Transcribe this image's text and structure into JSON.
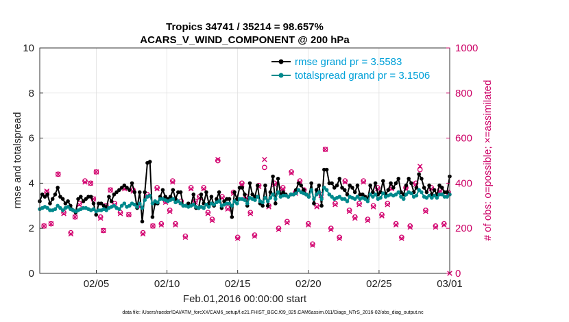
{
  "chart_data": {
    "type": "line",
    "title_line1": "Tropics 34741 / 35214 = 98.657%",
    "title_line2": "ACARS_V_WIND_COMPONENT @ 200 hPa",
    "xlabel": "Feb.01,2016 00:00:00 start",
    "ylabel_left": "rmse and totalspread",
    "ylabel_right": "# of obs: o=possible; ×=assimilated",
    "x_range_days": [
      1,
      30
    ],
    "ylim_left": [
      0,
      10
    ],
    "ylim_right": [
      0,
      1000
    ],
    "x_ticks": [
      {
        "day": 5,
        "label": "02/05"
      },
      {
        "day": 10,
        "label": "02/10"
      },
      {
        "day": 15,
        "label": "02/15"
      },
      {
        "day": 20,
        "label": "02/20"
      },
      {
        "day": 25,
        "label": "02/25"
      },
      {
        "day": 30,
        "label": "03/01"
      }
    ],
    "y_ticks_left": [
      "0",
      "2",
      "4",
      "6",
      "8",
      "10"
    ],
    "y_ticks_right": [
      "0",
      "200",
      "400",
      "600",
      "800",
      "1000"
    ],
    "grid": true,
    "legend_position": "top-right",
    "series": [
      {
        "name": "rmse grand pr = 3.5583",
        "color": "#000000",
        "axis": "left",
        "values": [
          3.2,
          3.5,
          3.4,
          3.5,
          3.1,
          3.3,
          3.5,
          3.8,
          3.4,
          3.3,
          3.1,
          3.2,
          3.0,
          2.8,
          2.7,
          3.3,
          3.4,
          3.2,
          3.3,
          3.4,
          3.4,
          3.1,
          2.6,
          3.1,
          3.1,
          3.0,
          2.9,
          3.4,
          3.2,
          3.5,
          3.6,
          3.7,
          3.8,
          3.9,
          3.8,
          3.7,
          4.0,
          3.6,
          2.9,
          3.6,
          2.3,
          3.6,
          4.9,
          4.95,
          2.5,
          3.1,
          3.1,
          3.4,
          3.7,
          3.4,
          3.3,
          3.4,
          3.7,
          3.3,
          3.6,
          3.6,
          3.0,
          3.0,
          3.1,
          3.0,
          3.5,
          2.9,
          2.9,
          3.5,
          3.1,
          3.6,
          3.1,
          3.4,
          3.0,
          3.3,
          3.6,
          2.9,
          3.2,
          3.3,
          3.3,
          2.5,
          3.6,
          3.3,
          3.8,
          3.8,
          3.5,
          3.0,
          4.0,
          3.5,
          3.4,
          3.9,
          3.1,
          3.0,
          3.9,
          3.0,
          3.6,
          4.3,
          3.1,
          4.2,
          3.5,
          3.6,
          3.5,
          3.4,
          3.5,
          3.5,
          3.7,
          4.0,
          3.9,
          3.7,
          3.5,
          3.4,
          4.0,
          3.1,
          3.7,
          3.9,
          3.0,
          4.6,
          4.6,
          4.0,
          4.0,
          3.8,
          3.9,
          4.2,
          3.8,
          3.7,
          3.5,
          3.9,
          3.8,
          3.6,
          3.9,
          3.5,
          3.5,
          3.4,
          3.3,
          3.9,
          3.6,
          4.0,
          3.5,
          3.6,
          4.1,
          3.5,
          3.7,
          4.0,
          3.8,
          4.0,
          4.2,
          3.6,
          3.5,
          3.9,
          4.2,
          4.0,
          3.6,
          3.8,
          4.4,
          4.2,
          3.8,
          3.6,
          3.9,
          3.5,
          3.7,
          3.5,
          3.9,
          3.8,
          3.6,
          3.6,
          4.3
        ]
      },
      {
        "name": "totalspread grand pr = 3.1506",
        "color": "#00898c",
        "axis": "left",
        "values": [
          2.85,
          2.9,
          2.95,
          2.9,
          2.8,
          2.8,
          2.85,
          3.0,
          2.9,
          2.8,
          2.9,
          2.95,
          2.85,
          2.8,
          2.75,
          2.8,
          2.85,
          2.9,
          2.9,
          2.85,
          2.8,
          2.85,
          2.75,
          2.8,
          2.8,
          2.85,
          2.8,
          2.9,
          2.95,
          3.0,
          2.9,
          2.85,
          3.0,
          3.1,
          2.95,
          3.0,
          3.1,
          3.05,
          2.95,
          3.1,
          2.9,
          3.25,
          3.4,
          3.45,
          3.1,
          3.2,
          3.15,
          3.3,
          3.3,
          3.25,
          3.2,
          3.25,
          3.3,
          3.15,
          3.2,
          3.1,
          3.0,
          3.0,
          2.95,
          3.0,
          3.05,
          2.95,
          2.9,
          2.95,
          2.9,
          3.05,
          2.95,
          3.1,
          3.05,
          3.15,
          3.2,
          3.0,
          3.05,
          3.1,
          3.1,
          3.0,
          3.2,
          3.1,
          3.3,
          3.3,
          3.25,
          3.1,
          3.35,
          3.3,
          3.25,
          3.4,
          3.2,
          3.15,
          3.35,
          3.2,
          3.35,
          3.5,
          3.3,
          3.6,
          3.4,
          3.45,
          3.45,
          3.4,
          3.5,
          3.5,
          3.55,
          3.7,
          3.6,
          3.55,
          3.5,
          3.4,
          3.7,
          3.3,
          3.5,
          3.6,
          3.3,
          3.8,
          3.7,
          3.5,
          3.4,
          3.3,
          3.35,
          3.4,
          3.3,
          3.3,
          3.2,
          3.4,
          3.35,
          3.3,
          3.4,
          3.3,
          3.35,
          3.3,
          3.2,
          3.5,
          3.4,
          3.5,
          3.3,
          3.35,
          3.55,
          3.4,
          3.45,
          3.5,
          3.45,
          3.5,
          3.6,
          3.4,
          3.3,
          3.5,
          3.6,
          3.55,
          3.4,
          3.45,
          3.7,
          3.6,
          3.4,
          3.35,
          3.45,
          3.35,
          3.45,
          3.35,
          3.5,
          3.5,
          3.4,
          3.4,
          3.5
        ]
      }
    ],
    "obs_possible": [
      [
        1.3,
        210
      ],
      [
        1.5,
        360
      ],
      [
        1.8,
        220
      ],
      [
        2.3,
        440
      ],
      [
        2.7,
        270
      ],
      [
        3.2,
        180
      ],
      [
        3.5,
        250
      ],
      [
        3.8,
        310
      ],
      [
        4.2,
        410
      ],
      [
        4.6,
        400
      ],
      [
        4.8,
        330
      ],
      [
        5.0,
        450
      ],
      [
        5.3,
        250
      ],
      [
        5.5,
        190
      ],
      [
        5.7,
        300
      ],
      [
        6.0,
        370
      ],
      [
        6.3,
        310
      ],
      [
        6.7,
        270
      ],
      [
        7.0,
        380
      ],
      [
        7.3,
        260
      ],
      [
        7.6,
        370
      ],
      [
        8.0,
        300
      ],
      [
        8.3,
        180
      ],
      [
        8.6,
        350
      ],
      [
        9.0,
        210
      ],
      [
        9.3,
        380
      ],
      [
        9.6,
        220
      ],
      [
        9.9,
        320
      ],
      [
        10.2,
        280
      ],
      [
        10.4,
        410
      ],
      [
        10.6,
        220
      ],
      [
        11.0,
        320
      ],
      [
        11.3,
        165
      ],
      [
        11.7,
        380
      ],
      [
        12.0,
        320
      ],
      [
        12.3,
        340
      ],
      [
        12.6,
        380
      ],
      [
        12.9,
        270
      ],
      [
        13.2,
        240
      ],
      [
        13.6,
        500
      ],
      [
        13.9,
        340
      ],
      [
        14.3,
        290
      ],
      [
        14.7,
        360
      ],
      [
        15.0,
        160
      ],
      [
        15.3,
        400
      ],
      [
        15.6,
        340
      ],
      [
        15.9,
        270
      ],
      [
        16.2,
        170
      ],
      [
        16.5,
        390
      ],
      [
        16.9,
        470
      ],
      [
        17.2,
        300
      ],
      [
        17.6,
        400
      ],
      [
        17.9,
        200
      ],
      [
        18.2,
        380
      ],
      [
        18.5,
        230
      ],
      [
        18.8,
        450
      ],
      [
        19.1,
        360
      ],
      [
        19.4,
        410
      ],
      [
        19.7,
        370
      ],
      [
        20.0,
        220
      ],
      [
        20.3,
        130
      ],
      [
        20.6,
        300
      ],
      [
        20.9,
        350
      ],
      [
        21.2,
        550
      ],
      [
        21.6,
        200
      ],
      [
        21.9,
        310
      ],
      [
        22.2,
        160
      ],
      [
        22.6,
        410
      ],
      [
        22.9,
        280
      ],
      [
        23.3,
        250
      ],
      [
        23.6,
        310
      ],
      [
        23.9,
        410
      ],
      [
        24.2,
        240
      ],
      [
        24.6,
        300
      ],
      [
        24.9,
        380
      ],
      [
        25.2,
        260
      ],
      [
        25.6,
        310
      ],
      [
        25.9,
        380
      ],
      [
        26.2,
        220
      ],
      [
        26.6,
        160
      ],
      [
        26.9,
        380
      ],
      [
        27.2,
        210
      ],
      [
        27.6,
        400
      ],
      [
        27.9,
        460
      ],
      [
        28.3,
        280
      ],
      [
        28.7,
        380
      ],
      [
        29.0,
        210
      ],
      [
        29.3,
        370
      ],
      [
        29.6,
        220
      ],
      [
        29.9,
        360
      ]
    ],
    "obs_assimilated": [
      [
        1.3,
        210
      ],
      [
        1.5,
        365
      ],
      [
        1.8,
        220
      ],
      [
        2.3,
        440
      ],
      [
        2.7,
        265
      ],
      [
        3.2,
        175
      ],
      [
        3.5,
        250
      ],
      [
        3.8,
        305
      ],
      [
        4.2,
        405
      ],
      [
        4.6,
        400
      ],
      [
        4.8,
        330
      ],
      [
        5.0,
        450
      ],
      [
        5.3,
        245
      ],
      [
        5.5,
        190
      ],
      [
        5.7,
        300
      ],
      [
        6.0,
        370
      ],
      [
        6.3,
        305
      ],
      [
        6.7,
        265
      ],
      [
        7.0,
        375
      ],
      [
        7.3,
        260
      ],
      [
        7.6,
        365
      ],
      [
        8.0,
        300
      ],
      [
        8.3,
        175
      ],
      [
        8.6,
        345
      ],
      [
        9.0,
        210
      ],
      [
        9.3,
        375
      ],
      [
        9.6,
        215
      ],
      [
        9.9,
        315
      ],
      [
        10.2,
        275
      ],
      [
        10.4,
        405
      ],
      [
        10.6,
        215
      ],
      [
        11.0,
        315
      ],
      [
        11.3,
        160
      ],
      [
        11.7,
        375
      ],
      [
        12.0,
        315
      ],
      [
        12.3,
        335
      ],
      [
        12.6,
        375
      ],
      [
        12.9,
        265
      ],
      [
        13.2,
        235
      ],
      [
        13.6,
        505
      ],
      [
        13.9,
        335
      ],
      [
        14.3,
        285
      ],
      [
        14.7,
        355
      ],
      [
        15.0,
        155
      ],
      [
        15.3,
        395
      ],
      [
        15.6,
        335
      ],
      [
        15.9,
        265
      ],
      [
        16.2,
        165
      ],
      [
        16.5,
        385
      ],
      [
        16.9,
        505
      ],
      [
        17.2,
        295
      ],
      [
        17.6,
        395
      ],
      [
        17.9,
        195
      ],
      [
        18.2,
        375
      ],
      [
        18.5,
        225
      ],
      [
        18.8,
        445
      ],
      [
        19.1,
        355
      ],
      [
        19.4,
        405
      ],
      [
        19.7,
        365
      ],
      [
        20.0,
        215
      ],
      [
        20.3,
        125
      ],
      [
        20.6,
        295
      ],
      [
        20.9,
        345
      ],
      [
        21.2,
        550
      ],
      [
        21.6,
        195
      ],
      [
        21.9,
        305
      ],
      [
        22.2,
        155
      ],
      [
        22.6,
        405
      ],
      [
        22.9,
        275
      ],
      [
        23.3,
        245
      ],
      [
        23.6,
        305
      ],
      [
        23.9,
        405
      ],
      [
        24.2,
        235
      ],
      [
        24.6,
        295
      ],
      [
        24.9,
        375
      ],
      [
        25.2,
        255
      ],
      [
        25.6,
        305
      ],
      [
        25.9,
        375
      ],
      [
        26.2,
        215
      ],
      [
        26.6,
        155
      ],
      [
        26.9,
        375
      ],
      [
        27.2,
        205
      ],
      [
        27.6,
        395
      ],
      [
        27.9,
        475
      ],
      [
        28.3,
        275
      ],
      [
        28.7,
        375
      ],
      [
        29.0,
        205
      ],
      [
        29.3,
        365
      ],
      [
        29.6,
        215
      ],
      [
        29.9,
        355
      ],
      [
        30.0,
        0
      ]
    ],
    "obs_color": "#d2006e"
  },
  "footer": "data file: /Users/raeder/DAI/ATM_forcXX/CAM6_setup/f.e21.FHIST_BGC.f09_025.CAM6assim.011/Diags_NTrS_2016-02/obs_diag_output.nc"
}
